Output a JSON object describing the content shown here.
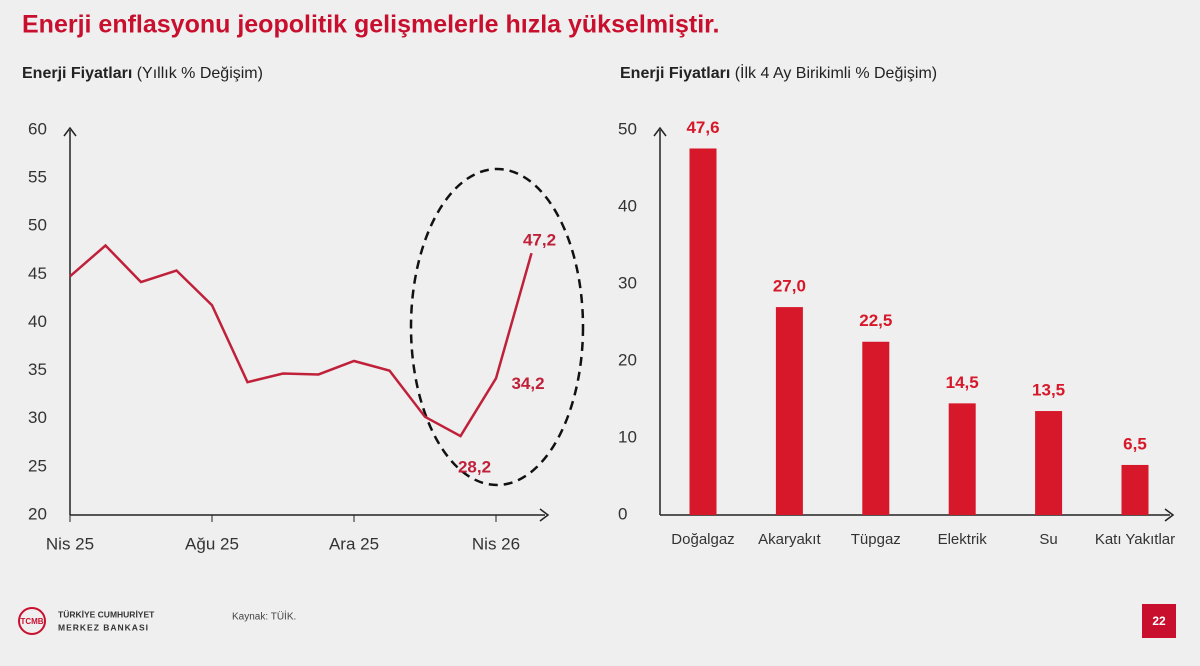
{
  "title": "Enerji enflasyonu jeopolitik gelişmelerle hızla yükselmiştir.",
  "chart_data": [
    {
      "type": "line",
      "title": "Enerji Fiyatları",
      "subtitle": "(Yıllık % Değişim)",
      "categories": [
        "Nis 25",
        null,
        null,
        null,
        "Ağu 25",
        null,
        null,
        null,
        "Ara 25",
        null,
        null,
        null,
        "Nis 26",
        null
      ],
      "values": [
        44.8,
        48.0,
        44.2,
        45.4,
        41.8,
        33.8,
        34.7,
        34.6,
        36.0,
        35.0,
        30.2,
        28.2,
        34.2,
        47.2
      ],
      "value_labels": [
        null,
        null,
        null,
        null,
        null,
        null,
        null,
        null,
        null,
        null,
        null,
        "28,2",
        "34,2",
        "47,2"
      ],
      "color": "#c0213a",
      "ylim": [
        20,
        60
      ],
      "yticks": [
        20,
        25,
        30,
        35,
        40,
        45,
        50,
        55,
        60
      ],
      "grid": false
    },
    {
      "type": "bar",
      "title": "Enerji Fiyatları",
      "subtitle": "(İlk 4 Ay Birikimli % Değişim)",
      "categories": [
        "Doğalgaz",
        "Akaryakıt",
        "Tüpgaz",
        "Elektrik",
        "Su",
        "Katı Yakıtlar"
      ],
      "values": [
        47.6,
        27.0,
        22.5,
        14.5,
        13.5,
        6.5
      ],
      "value_labels": [
        "47,6",
        "27,0",
        "22,5",
        "14,5",
        "13,5",
        "6,5"
      ],
      "color": "#d7182a",
      "ylim": [
        0,
        50
      ],
      "yticks": [
        0,
        10,
        20,
        30,
        40,
        50
      ],
      "grid": false
    }
  ],
  "footer": {
    "logo_line1": "TÜRKİYE CUMHURİYET",
    "logo_line2": "MERKEZ BANKASI",
    "logo_mark": "TCMB",
    "source": "Kaynak: TÜİK.",
    "page": "22"
  }
}
